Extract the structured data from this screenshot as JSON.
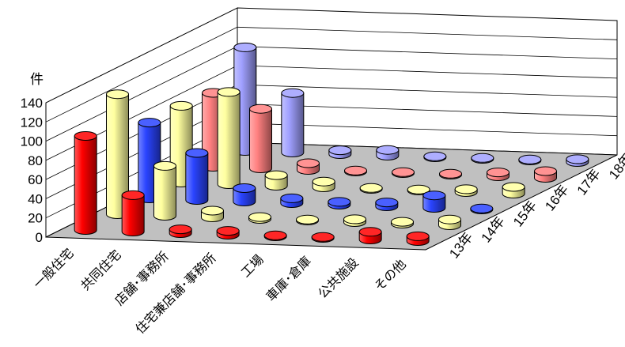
{
  "chart_data": {
    "type": "bar",
    "subtype": "3d-cylinder",
    "title": "",
    "ylabel": "件",
    "ylim": [
      0,
      140
    ],
    "yticks": [
      "0",
      "20",
      "40",
      "60",
      "80",
      "100",
      "120",
      "140"
    ],
    "categories": [
      "一般住宅",
      "共同住宅",
      "店舗･事務所",
      "住宅兼店舗･事務所",
      "工場",
      "車庫･倉庫",
      "公共施設",
      "その他"
    ],
    "series": [
      {
        "name": "13年",
        "color": "#ff0000",
        "values": [
          98,
          38,
          4,
          4,
          1,
          1,
          8,
          5
        ]
      },
      {
        "name": "14年",
        "color": "#ffffa0",
        "values": [
          125,
          52,
          7,
          2,
          1,
          3,
          2,
          6
        ]
      },
      {
        "name": "15年",
        "color": "#2a44ff",
        "values": [
          79,
          49,
          14,
          5,
          3,
          4,
          13,
          1
        ]
      },
      {
        "name": "16年",
        "color": "#ffffa0",
        "values": [
          80,
          96,
          11,
          6,
          1,
          1,
          3,
          7
        ]
      },
      {
        "name": "17年",
        "color": "#ff8080",
        "values": [
          77,
          62,
          7,
          1,
          1,
          1,
          4,
          7
        ]
      },
      {
        "name": "18年",
        "color": "#a0a0ff",
        "values": [
          108,
          62,
          4,
          6,
          1,
          1,
          1,
          3
        ]
      }
    ],
    "grid": true
  }
}
